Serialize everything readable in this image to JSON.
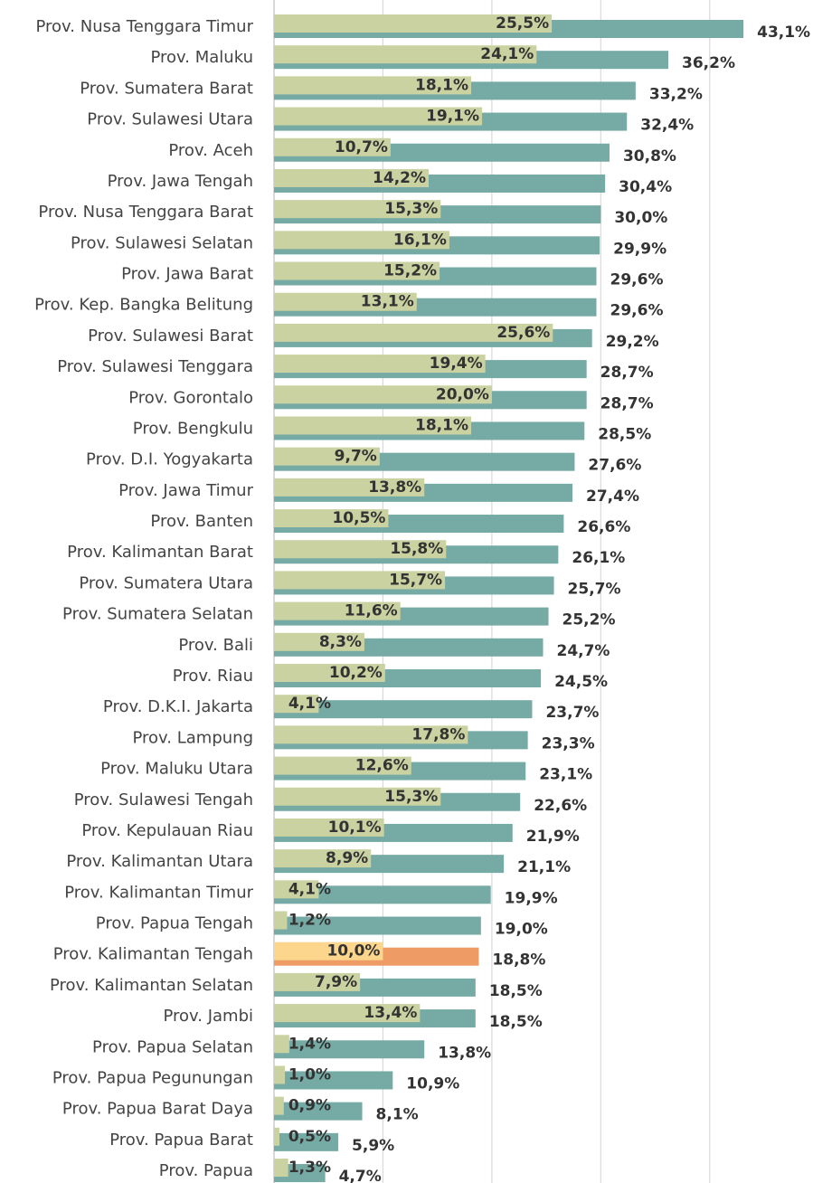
{
  "chart_data": {
    "type": "bar",
    "categories": [
      "Prov. Nusa Tenggara Timur",
      "Prov. Maluku",
      "Prov. Sumatera Barat",
      "Prov. Sulawesi Utara",
      "Prov. Aceh",
      "Prov. Jawa Tengah",
      "Prov. Nusa Tenggara Barat",
      "Prov. Sulawesi Selatan",
      "Prov. Jawa Barat",
      "Prov. Kep. Bangka Belitung",
      "Prov. Sulawesi Barat",
      "Prov. Sulawesi Tenggara",
      "Prov. Gorontalo",
      "Prov. Bengkulu",
      "Prov. D.I. Yogyakarta",
      "Prov. Jawa Timur",
      "Prov. Banten",
      "Prov. Kalimantan Barat",
      "Prov. Sumatera Utara",
      "Prov. Sumatera Selatan",
      "Prov. Bali",
      "Prov. Riau",
      "Prov. D.K.I. Jakarta",
      "Prov. Lampung",
      "Prov. Maluku Utara",
      "Prov. Sulawesi Tengah",
      "Prov. Kepulauan Riau",
      "Prov. Kalimantan Utara",
      "Prov. Kalimantan Timur",
      "Prov. Papua Tengah",
      "Prov. Kalimantan Tengah",
      "Prov. Kalimantan Selatan",
      "Prov. Jambi",
      "Prov. Papua Selatan",
      "Prov. Papua Pegunungan",
      "Prov. Papua Barat Daya",
      "Prov. Papua Barat",
      "Prov. Papua"
    ],
    "series": [
      {
        "color": "#76aaa4",
        "highlight_color": "#ee9b66",
        "highlight_index": 30,
        "values": [
          43.1,
          36.2,
          33.2,
          32.4,
          30.8,
          30.4,
          30.0,
          29.9,
          29.6,
          29.6,
          29.2,
          28.7,
          28.7,
          28.5,
          27.6,
          27.4,
          26.6,
          26.1,
          25.7,
          25.2,
          24.7,
          24.5,
          23.7,
          23.3,
          23.1,
          22.6,
          21.9,
          21.1,
          19.9,
          19.0,
          18.8,
          18.5,
          18.5,
          13.8,
          10.9,
          8.1,
          5.9,
          4.7
        ],
        "value_labels": [
          "43,1%",
          "36,2%",
          "33,2%",
          "32,4%",
          "30,8%",
          "30,4%",
          "30,0%",
          "29,9%",
          "29,6%",
          "29,6%",
          "29,2%",
          "28,7%",
          "28,7%",
          "28,5%",
          "27,6%",
          "27,4%",
          "26,6%",
          "26,1%",
          "25,7%",
          "25,2%",
          "24,7%",
          "24,5%",
          "23,7%",
          "23,3%",
          "23,1%",
          "22,6%",
          "21,9%",
          "21,1%",
          "19,9%",
          "19,0%",
          "18,8%",
          "18,5%",
          "18,5%",
          "13,8%",
          "10,9%",
          "8,1%",
          "5,9%",
          "4,7%"
        ]
      },
      {
        "color": "#cad2a2",
        "highlight_color": "#fbd68c",
        "highlight_index": 30,
        "values": [
          25.5,
          24.1,
          18.1,
          19.1,
          10.7,
          14.2,
          15.3,
          16.1,
          15.2,
          13.1,
          25.6,
          19.4,
          20.0,
          18.1,
          9.7,
          13.8,
          10.5,
          15.8,
          15.7,
          11.6,
          8.3,
          10.2,
          4.1,
          17.8,
          12.6,
          15.3,
          10.1,
          8.9,
          4.1,
          1.2,
          10.0,
          7.9,
          13.4,
          1.4,
          1.0,
          0.9,
          0.5,
          1.3
        ],
        "value_labels": [
          "25,5%",
          "24,1%",
          "18,1%",
          "19,1%",
          "10,7%",
          "14,2%",
          "15,3%",
          "16,1%",
          "15,2%",
          "13,1%",
          "25,6%",
          "19,4%",
          "20,0%",
          "18,1%",
          "9,7%",
          "13,8%",
          "10,5%",
          "15,8%",
          "15,7%",
          "11,6%",
          "8,3%",
          "10,2%",
          "4,1%",
          "17,8%",
          "12,6%",
          "15,3%",
          "10,1%",
          "8,9%",
          "4,1%",
          "1,2%",
          "10,0%",
          "7,9%",
          "13,4%",
          "1,4%",
          "1,0%",
          "0,9%",
          "0,5%",
          "1,3%"
        ]
      }
    ],
    "xlim": [
      0,
      45
    ],
    "xgrid": [
      0,
      10,
      20,
      30,
      40
    ]
  }
}
